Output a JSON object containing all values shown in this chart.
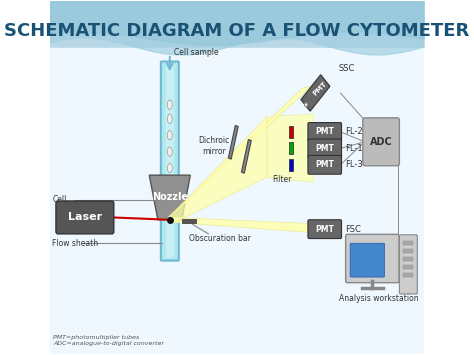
{
  "title": "SCHEMATIC DIAGRAM OF A FLOW CYTOMETER",
  "title_fontsize": 13,
  "title_color": "#1a5276",
  "labels": {
    "cell_sample": "Cell sample",
    "nozzle": "Nozzle",
    "cell": "Cell",
    "laser": "Laser",
    "flow_sheath": "Flow sheath",
    "dichroic_mirror": "Dichroic\nmirror",
    "filter": "Filter",
    "obscuration_bar": "Obscuration bar",
    "ssc": "SSC",
    "fl2": "FL-2",
    "fl1": "FL-1",
    "fl3": "FL-3",
    "fsc": "FSC",
    "adc": "ADC",
    "analysis": "Analysis workstation",
    "pmt_note": "PMT=photomultiplier tubes\nADC=analogue-to-digital converter"
  },
  "colors": {
    "flow_tube": "#b0e8f0",
    "flow_tube_edge": "#70b8d0",
    "nozzle": "#909090",
    "laser_beam": "#cc0000",
    "laser_box": "#555555",
    "pmt_box": "#666666",
    "adc_box": "#bbbbbb",
    "beam_yellow": "#ffffaa",
    "beam_edge": "#e8e890",
    "dichroic": "#888888",
    "filter_red": "#cc0000",
    "filter_green": "#00aa00",
    "filter_blue": "#0000cc",
    "text_dark": "#333333",
    "background_top": "#b8d8e8",
    "background_bottom": "#f0f8ff",
    "screen_blue": "#4488cc",
    "computer_gray": "#cccccc"
  },
  "figsize": [
    4.74,
    3.55
  ],
  "dpi": 100
}
